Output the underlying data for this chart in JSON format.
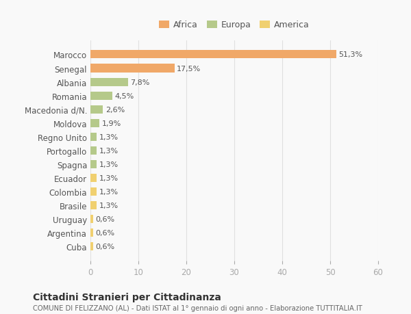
{
  "categories": [
    "Cuba",
    "Argentina",
    "Uruguay",
    "Brasile",
    "Colombia",
    "Ecuador",
    "Spagna",
    "Portogallo",
    "Regno Unito",
    "Moldova",
    "Macedonia d/N.",
    "Romania",
    "Albania",
    "Senegal",
    "Marocco"
  ],
  "values": [
    0.6,
    0.6,
    0.6,
    1.3,
    1.3,
    1.3,
    1.3,
    1.3,
    1.3,
    1.9,
    2.6,
    4.5,
    7.8,
    17.5,
    51.3
  ],
  "labels": [
    "0,6%",
    "0,6%",
    "0,6%",
    "1,3%",
    "1,3%",
    "1,3%",
    "1,3%",
    "1,3%",
    "1,3%",
    "1,9%",
    "2,6%",
    "4,5%",
    "7,8%",
    "17,5%",
    "51,3%"
  ],
  "continent": [
    "America",
    "America",
    "America",
    "America",
    "America",
    "America",
    "Europa",
    "Europa",
    "Europa",
    "Europa",
    "Europa",
    "Europa",
    "Europa",
    "Africa",
    "Africa"
  ],
  "colors": {
    "Africa": "#F0A868",
    "Europa": "#B5C98A",
    "America": "#F0D070"
  },
  "legend_labels": [
    "Africa",
    "Europa",
    "America"
  ],
  "legend_colors": [
    "#F0A868",
    "#B5C98A",
    "#F0D070"
  ],
  "title": "Cittadini Stranieri per Cittadinanza",
  "subtitle": "COMUNE DI FELIZZANO (AL) - Dati ISTAT al 1° gennaio di ogni anno - Elaborazione TUTTITALIA.IT",
  "xlim": [
    0,
    60
  ],
  "xticks": [
    0,
    10,
    20,
    30,
    40,
    50,
    60
  ],
  "background_color": "#f9f9f9",
  "grid_color": "#e0e0e0",
  "bar_height": 0.6
}
